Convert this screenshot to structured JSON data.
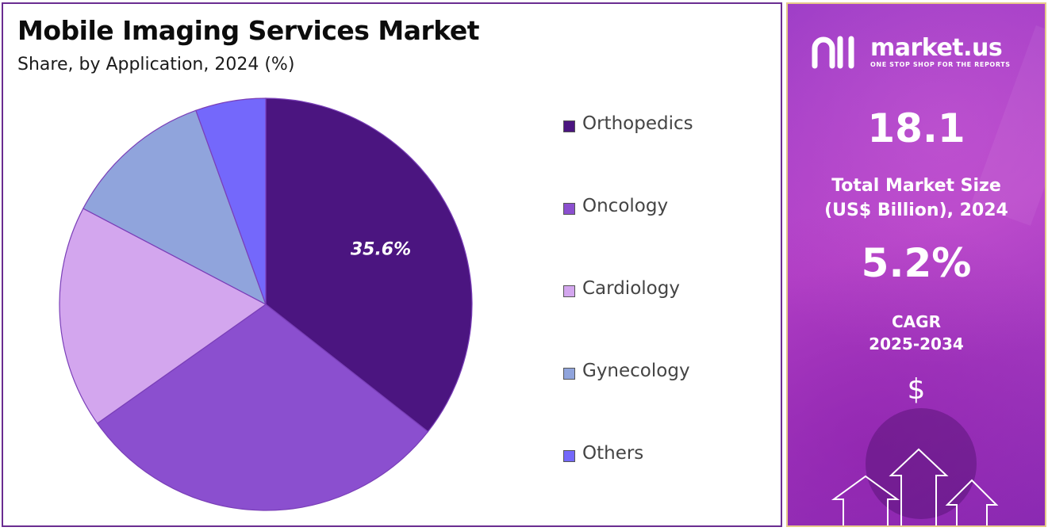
{
  "chart_data": {
    "type": "pie",
    "title": "Mobile Imaging Services Market",
    "subtitle": "Share, by Application, 2024 (%)",
    "start_angle_deg": 0,
    "direction": "clockwise",
    "slices": [
      {
        "label": "Orthopedics",
        "value": 35.6,
        "color": "#4b1580",
        "data_label": "35.6%"
      },
      {
        "label": "Oncology",
        "value": 29.6,
        "color": "#8b4fcf",
        "data_label": ""
      },
      {
        "label": "Cardiology",
        "value": 17.5,
        "color": "#d3a6ee",
        "data_label": ""
      },
      {
        "label": "Gynecology",
        "value": 11.8,
        "color": "#90a4dc",
        "data_label": ""
      },
      {
        "label": "Others",
        "value": 5.5,
        "color": "#7468fb",
        "data_label": ""
      }
    ],
    "legend_position": "right"
  },
  "sidebar": {
    "brand_name": "market.us",
    "brand_tagline": "ONE STOP SHOP FOR THE REPORTS",
    "market_size_value": "18.1",
    "market_size_label_line1": "Total Market Size",
    "market_size_label_line2": "(US$ Billion), 2024",
    "cagr_value": "5.2%",
    "cagr_label_line1": "CAGR",
    "cagr_label_line2": "2025-2034",
    "icon": "dollar-icon",
    "dollar_glyph": "$"
  }
}
